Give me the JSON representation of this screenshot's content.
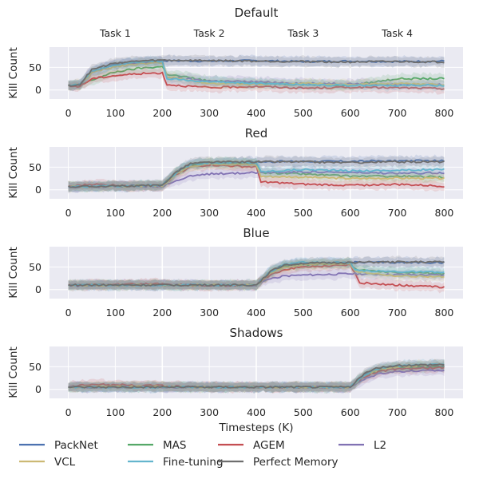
{
  "chart_data": {
    "type": "line",
    "xlabel": "Timesteps (K)",
    "ylabel": "Kill Count",
    "x_ticks": [
      0,
      100,
      200,
      300,
      400,
      500,
      600,
      700,
      800
    ],
    "y_ticks": [
      0,
      50
    ],
    "xlim": [
      -40,
      840
    ],
    "ylim": [
      -20,
      95
    ],
    "task_labels": [
      {
        "label": "Task 1",
        "x": 100
      },
      {
        "label": "Task 2",
        "x": 300
      },
      {
        "label": "Task 3",
        "x": 500
      },
      {
        "label": "Task 4",
        "x": 700
      }
    ],
    "task_boundaries": [
      200,
      400,
      600
    ],
    "legend": {
      "placement": "bottom",
      "entries": [
        "PackNet",
        "MAS",
        "AGEM",
        "L2",
        "VCL",
        "Fine-tuning",
        "Perfect Memory"
      ]
    },
    "colors": {
      "PackNet": "#4c72b0",
      "MAS": "#55a868",
      "AGEM": "#c44e52",
      "L2": "#8172b3",
      "VCL": "#ccb974",
      "Fine-tuning": "#64b5cd",
      "Perfect Memory": "#6e6e6e",
      "axes_bg": "#eaeaf2",
      "grid": "#ffffff"
    },
    "panels": [
      {
        "title": "Default",
        "series": [
          {
            "name": "PackNet",
            "x": [
              0,
              25,
              50,
              100,
              150,
              200,
              300,
              400,
              500,
              600,
              700,
              800
            ],
            "y": [
              10,
              12,
              40,
              58,
              63,
              65,
              64,
              65,
              63,
              64,
              63,
              64
            ]
          },
          {
            "name": "MAS",
            "x": [
              0,
              25,
              50,
              100,
              150,
              200,
              210,
              300,
              400,
              500,
              600,
              700,
              800
            ],
            "y": [
              10,
              10,
              22,
              40,
              48,
              52,
              35,
              20,
              15,
              12,
              10,
              25,
              25
            ]
          },
          {
            "name": "AGEM",
            "x": [
              0,
              25,
              50,
              100,
              150,
              200,
              210,
              300,
              400,
              500,
              600,
              700,
              800
            ],
            "y": [
              8,
              8,
              25,
              32,
              36,
              38,
              12,
              5,
              8,
              4,
              6,
              5,
              3
            ]
          },
          {
            "name": "L2",
            "x": [
              0,
              25,
              50,
              100,
              150,
              200,
              210,
              300,
              400,
              500,
              600,
              700,
              800
            ],
            "y": [
              10,
              14,
              42,
              55,
              60,
              62,
              28,
              20,
              18,
              15,
              14,
              12,
              12
            ]
          },
          {
            "name": "VCL",
            "x": [
              0,
              25,
              50,
              100,
              150,
              200,
              210,
              300,
              400,
              500,
              600,
              700,
              800
            ],
            "y": [
              10,
              12,
              38,
              52,
              58,
              60,
              30,
              15,
              12,
              15,
              12,
              14,
              12
            ]
          },
          {
            "name": "Fine-tuning",
            "x": [
              0,
              25,
              50,
              100,
              150,
              200,
              210,
              300,
              400,
              500,
              600,
              700,
              800
            ],
            "y": [
              10,
              14,
              42,
              55,
              62,
              64,
              25,
              18,
              15,
              12,
              10,
              10,
              10
            ]
          },
          {
            "name": "Perfect Memory",
            "x": [
              0,
              25,
              50,
              100,
              150,
              200,
              300,
              400,
              500,
              600,
              700,
              800
            ],
            "y": [
              10,
              12,
              45,
              60,
              64,
              66,
              65,
              64,
              63,
              62,
              63,
              62
            ]
          }
        ]
      },
      {
        "title": "Red",
        "series": [
          {
            "name": "PackNet",
            "x": [
              0,
              100,
              200,
              230,
              260,
              300,
              400,
              500,
              600,
              700,
              800
            ],
            "y": [
              7,
              8,
              10,
              40,
              58,
              60,
              62,
              63,
              63,
              64,
              64
            ]
          },
          {
            "name": "MAS",
            "x": [
              0,
              100,
              200,
              230,
              260,
              300,
              400,
              410,
              500,
              600,
              700,
              800
            ],
            "y": [
              7,
              8,
              10,
              38,
              56,
              60,
              58,
              38,
              35,
              30,
              30,
              28
            ]
          },
          {
            "name": "AGEM",
            "x": [
              0,
              50,
              100,
              200,
              230,
              260,
              300,
              400,
              410,
              500,
              600,
              700,
              800
            ],
            "y": [
              7,
              12,
              10,
              8,
              35,
              50,
              55,
              50,
              18,
              12,
              10,
              12,
              8
            ]
          },
          {
            "name": "L2",
            "x": [
              0,
              100,
              200,
              230,
              260,
              300,
              400,
              500,
              600,
              700,
              800
            ],
            "y": [
              6,
              7,
              8,
              20,
              30,
              35,
              38,
              40,
              38,
              36,
              38
            ]
          },
          {
            "name": "VCL",
            "x": [
              0,
              100,
              200,
              230,
              260,
              300,
              400,
              410,
              500,
              600,
              700,
              800
            ],
            "y": [
              7,
              8,
              8,
              35,
              52,
              58,
              55,
              30,
              28,
              25,
              26,
              25
            ]
          },
          {
            "name": "Fine-tuning",
            "x": [
              0,
              100,
              200,
              230,
              260,
              300,
              400,
              410,
              500,
              600,
              700,
              800
            ],
            "y": [
              7,
              8,
              10,
              38,
              56,
              60,
              60,
              40,
              45,
              42,
              43,
              45
            ]
          },
          {
            "name": "Perfect Memory",
            "x": [
              0,
              100,
              200,
              230,
              260,
              300,
              400,
              500,
              600,
              700,
              800
            ],
            "y": [
              7,
              8,
              10,
              40,
              58,
              61,
              62,
              62,
              60,
              62,
              62
            ]
          }
        ]
      },
      {
        "title": "Blue",
        "series": [
          {
            "name": "PackNet",
            "x": [
              0,
              100,
              200,
              300,
              400,
              430,
              460,
              500,
              600,
              700,
              800
            ],
            "y": [
              10,
              10,
              10,
              10,
              10,
              40,
              55,
              58,
              60,
              60,
              60
            ]
          },
          {
            "name": "MAS",
            "x": [
              0,
              100,
              200,
              300,
              400,
              430,
              460,
              500,
              600,
              610,
              700,
              800
            ],
            "y": [
              10,
              10,
              10,
              10,
              10,
              38,
              52,
              55,
              58,
              45,
              38,
              35
            ]
          },
          {
            "name": "AGEM",
            "x": [
              0,
              100,
              200,
              300,
              400,
              430,
              460,
              500,
              600,
              620,
              700,
              800
            ],
            "y": [
              10,
              12,
              12,
              8,
              10,
              32,
              45,
              50,
              55,
              15,
              10,
              5
            ]
          },
          {
            "name": "L2",
            "x": [
              0,
              100,
              200,
              300,
              400,
              430,
              460,
              500,
              600,
              700,
              800
            ],
            "y": [
              8,
              10,
              10,
              10,
              10,
              25,
              30,
              32,
              35,
              33,
              32
            ]
          },
          {
            "name": "VCL",
            "x": [
              0,
              100,
              200,
              300,
              400,
              430,
              460,
              500,
              600,
              610,
              700,
              800
            ],
            "y": [
              10,
              10,
              10,
              10,
              10,
              36,
              50,
              55,
              58,
              40,
              30,
              28
            ]
          },
          {
            "name": "Fine-tuning",
            "x": [
              0,
              100,
              200,
              300,
              400,
              430,
              460,
              500,
              600,
              610,
              700,
              800
            ],
            "y": [
              10,
              10,
              10,
              10,
              10,
              40,
              55,
              60,
              60,
              42,
              40,
              38
            ]
          },
          {
            "name": "Perfect Memory",
            "x": [
              0,
              100,
              200,
              300,
              400,
              430,
              460,
              500,
              600,
              700,
              800
            ],
            "y": [
              10,
              10,
              10,
              10,
              10,
              40,
              55,
              58,
              60,
              61,
              61
            ]
          }
        ]
      },
      {
        "title": "Shadows",
        "series": [
          {
            "name": "PackNet",
            "x": [
              0,
              100,
              200,
              300,
              400,
              500,
              600,
              630,
              660,
              700,
              800
            ],
            "y": [
              5,
              5,
              5,
              5,
              5,
              5,
              5,
              32,
              45,
              50,
              52
            ]
          },
          {
            "name": "MAS",
            "x": [
              0,
              100,
              200,
              300,
              400,
              500,
              600,
              630,
              660,
              700,
              800
            ],
            "y": [
              5,
              6,
              6,
              5,
              5,
              5,
              5,
              30,
              42,
              48,
              50
            ]
          },
          {
            "name": "AGEM",
            "x": [
              0,
              50,
              100,
              200,
              300,
              400,
              500,
              600,
              630,
              660,
              700,
              800
            ],
            "y": [
              5,
              12,
              10,
              8,
              5,
              5,
              5,
              5,
              28,
              40,
              45,
              48
            ]
          },
          {
            "name": "L2",
            "x": [
              0,
              100,
              200,
              300,
              400,
              500,
              600,
              630,
              660,
              700,
              800
            ],
            "y": [
              5,
              5,
              5,
              5,
              5,
              5,
              5,
              22,
              35,
              40,
              42
            ]
          },
          {
            "name": "VCL",
            "x": [
              0,
              100,
              200,
              300,
              400,
              500,
              600,
              630,
              660,
              700,
              800
            ],
            "y": [
              5,
              6,
              6,
              5,
              5,
              5,
              5,
              30,
              44,
              50,
              55
            ]
          },
          {
            "name": "Fine-tuning",
            "x": [
              0,
              100,
              200,
              300,
              400,
              500,
              600,
              630,
              660,
              700,
              800
            ],
            "y": [
              5,
              5,
              5,
              5,
              5,
              5,
              5,
              32,
              46,
              52,
              56
            ]
          },
          {
            "name": "Perfect Memory",
            "x": [
              0,
              100,
              200,
              300,
              400,
              500,
              600,
              630,
              660,
              700,
              800
            ],
            "y": [
              5,
              5,
              5,
              5,
              5,
              5,
              5,
              35,
              48,
              53,
              55
            ]
          }
        ]
      }
    ]
  }
}
